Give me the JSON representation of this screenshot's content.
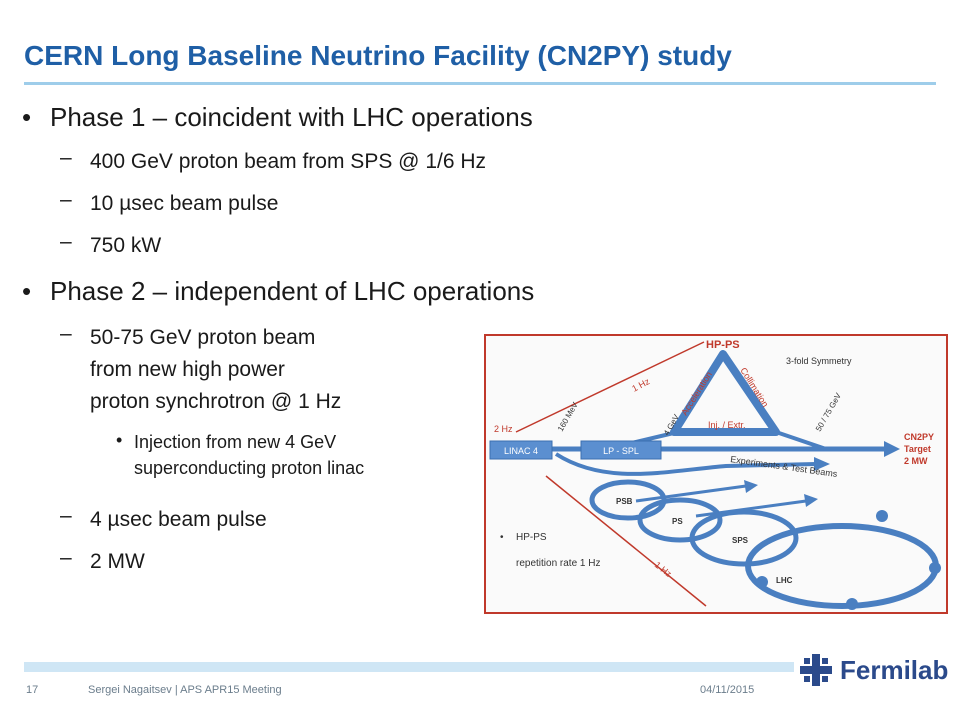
{
  "title": "CERN Long Baseline Neutrino Facility (CN2PY) study",
  "bullets": {
    "p1": "Phase 1 – coincident with LHC operations",
    "p1a": "400 GeV proton beam from SPS @ 1/6 Hz",
    "p1b": "10 µsec beam pulse",
    "p1c": "750 kW",
    "p2": "Phase 2 – independent of LHC operations",
    "p2a_1": "50-75 GeV proton beam",
    "p2a_2": "from new high power",
    "p2a_3": "proton synchrotron @ 1 Hz",
    "p2a_sub_1": "Injection from new 4 GeV",
    "p2a_sub_2": "superconducting proton linac",
    "p2b": "4 µsec beam pulse",
    "p2c": "2 MW"
  },
  "markers": {
    "bullet": "•",
    "dash": "–"
  },
  "diagram": {
    "hp_ps": "HP-PS",
    "symmetry": "3-fold Symmetry",
    "acceleration": "Acceleration",
    "collimation": "Collimation",
    "inj_extr": "Inj. / Extr.",
    "one_hz": "1 Hz",
    "two_hz": "2 Hz",
    "mev": "160 MeV",
    "four_gev": "4 GeV",
    "fifty_gev": "50 / 75 GeV",
    "linac4": "LINAC 4",
    "lp_spl": "LP - SPL",
    "cn2py": "CN2PY",
    "target": "Target",
    "two_mw": "2 MW",
    "experiments": "Experiments & Test Beams",
    "psb": "PSB",
    "ps": "PS",
    "sps": "SPS",
    "lhc": "LHC",
    "note_bullet": "HP-PS",
    "note_rate": "repetition rate 1 Hz",
    "one_hz_b": "1 Hz"
  },
  "footer": {
    "page": "17",
    "author": "Sergei Nagaitsev | APS APR15 Meeting",
    "date": "04/11/2015",
    "logo": "Fermilab"
  },
  "colors": {
    "title": "#1f5fa6",
    "ring": "#4a7fc1",
    "red": "#c0392b"
  }
}
